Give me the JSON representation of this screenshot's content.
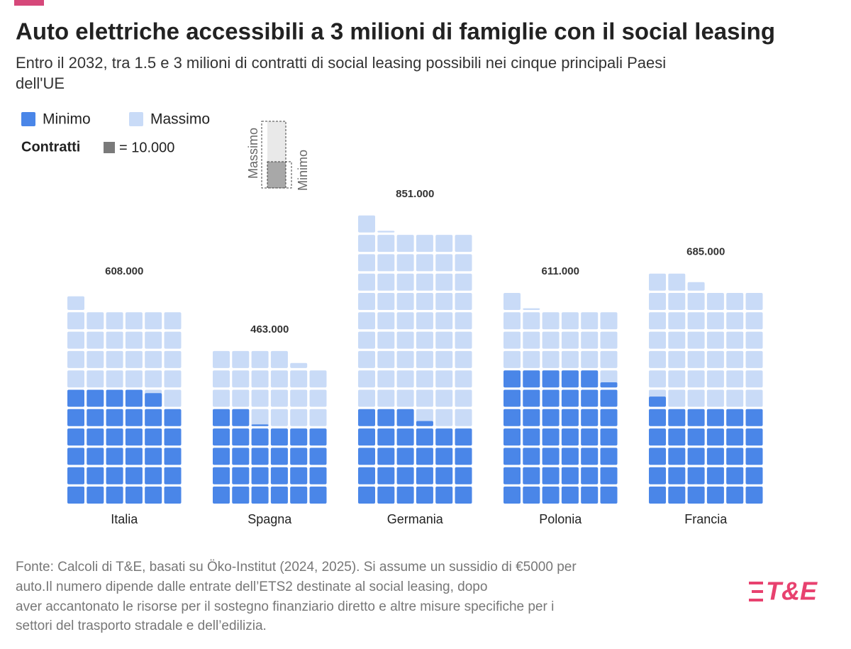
{
  "chart_data": {
    "type": "waffle",
    "title": "Auto elettriche accessibili a 3 milioni di famiglie con il social leasing",
    "subtitle": [
      "Entro il 2032, tra 1.5 e 3 milioni di contratti di social leasing possibili nei cinque principali Paesi",
      "dell'UE"
    ],
    "unit": {
      "label": "Contratti",
      "text": "= 10.000",
      "value": 10000
    },
    "categories": [
      "Italia",
      "Spagna",
      "Germania",
      "Polonia",
      "Francia"
    ],
    "series": [
      {
        "name": "Minimo",
        "color": "#4a86e8",
        "values": [
          348000,
          261000,
          273000,
          413000,
          306000
        ]
      },
      {
        "name": "Massimo",
        "color": "#c9dbf7",
        "values": [
          608000,
          463000,
          851000,
          611000,
          685000
        ],
        "value_labels": [
          "608.000",
          "463.000",
          "851.000",
          "611.000",
          "685.000"
        ]
      }
    ],
    "source": [
      "Fonte: Calcoli di T&E, basati su Öko-Institut (2024, 2025). Si assume un sussidio di €5000 per",
      "auto.Il numero dipende dalle entrate dell’ETS2 destinate al social leasing, dopo",
      "aver accantonato le risorse per il sostegno finanziario diretto e altre misure specifiche per i",
      "settori del trasporto stradale e dell’edilizia."
    ],
    "logo": "T&E"
  }
}
